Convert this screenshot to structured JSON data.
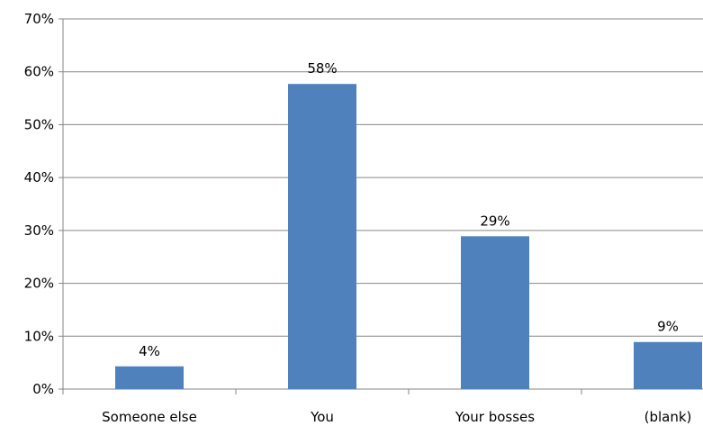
{
  "chart_data": {
    "type": "bar",
    "categories": [
      "Someone else",
      "You",
      "Your bosses",
      "(blank)"
    ],
    "values": [
      4.3,
      57.7,
      28.9,
      8.9
    ],
    "data_labels": [
      "4%",
      "58%",
      "29%",
      "9%"
    ],
    "y_tick_labels": [
      "0%",
      "10%",
      "20%",
      "30%",
      "40%",
      "50%",
      "60%",
      "70%"
    ],
    "y_ticks": [
      0,
      10,
      20,
      30,
      40,
      50,
      60,
      70
    ],
    "ylim": [
      0,
      70
    ],
    "grid": true,
    "legend": "none",
    "title": "",
    "xlabel": "",
    "ylabel": "",
    "colors": {
      "bar": "#4F81BD",
      "grid": "#868686",
      "axis": "#868686"
    }
  }
}
